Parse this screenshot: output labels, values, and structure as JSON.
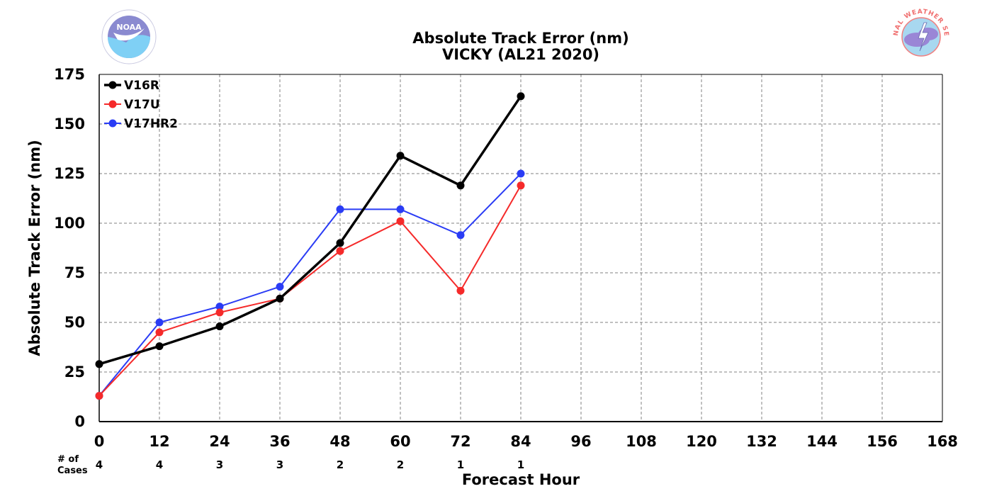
{
  "chart_data": {
    "type": "line",
    "title": "Absolute Track Error (nm)",
    "subtitle": "VICKY (AL21 2020)",
    "xlabel": "Forecast Hour",
    "ylabel": "Absolute Track Error (nm)",
    "xlim": [
      0,
      168
    ],
    "ylim": [
      0,
      175
    ],
    "x_ticks": [
      "0",
      "12",
      "24",
      "36",
      "48",
      "60",
      "72",
      "84",
      "96",
      "108",
      "120",
      "132",
      "144",
      "156",
      "168"
    ],
    "y_ticks": [
      "0",
      "25",
      "50",
      "75",
      "100",
      "125",
      "150",
      "175"
    ],
    "grid": true,
    "legend_position": "top-left",
    "series": [
      {
        "name": "V16R",
        "color": "#000000",
        "x": [
          0,
          12,
          24,
          36,
          48,
          60,
          72,
          84
        ],
        "values": [
          29,
          38,
          48,
          62,
          90,
          134,
          119,
          164
        ]
      },
      {
        "name": "V17U",
        "color": "#f52a2a",
        "x": [
          0,
          12,
          24,
          36,
          48,
          60,
          72,
          84
        ],
        "values": [
          13,
          45,
          55,
          62,
          86,
          101,
          66,
          119
        ]
      },
      {
        "name": "V17HR2",
        "color": "#2a3cf5",
        "x": [
          0,
          12,
          24,
          36,
          48,
          60,
          72,
          84
        ],
        "values": [
          13,
          50,
          58,
          68,
          107,
          107,
          94,
          125
        ]
      }
    ],
    "cases": {
      "label_line1": "# of",
      "label_line2": "Cases",
      "x": [
        0,
        12,
        24,
        36,
        48,
        60,
        72,
        84
      ],
      "values": [
        "4",
        "4",
        "3",
        "3",
        "2",
        "2",
        "1",
        "1"
      ]
    }
  },
  "logos": {
    "left": {
      "icon": "noaa-logo",
      "text": "NOAA"
    },
    "right": {
      "icon": "nws-logo",
      "text": "NATIONAL WEATHER SERVICE"
    }
  }
}
